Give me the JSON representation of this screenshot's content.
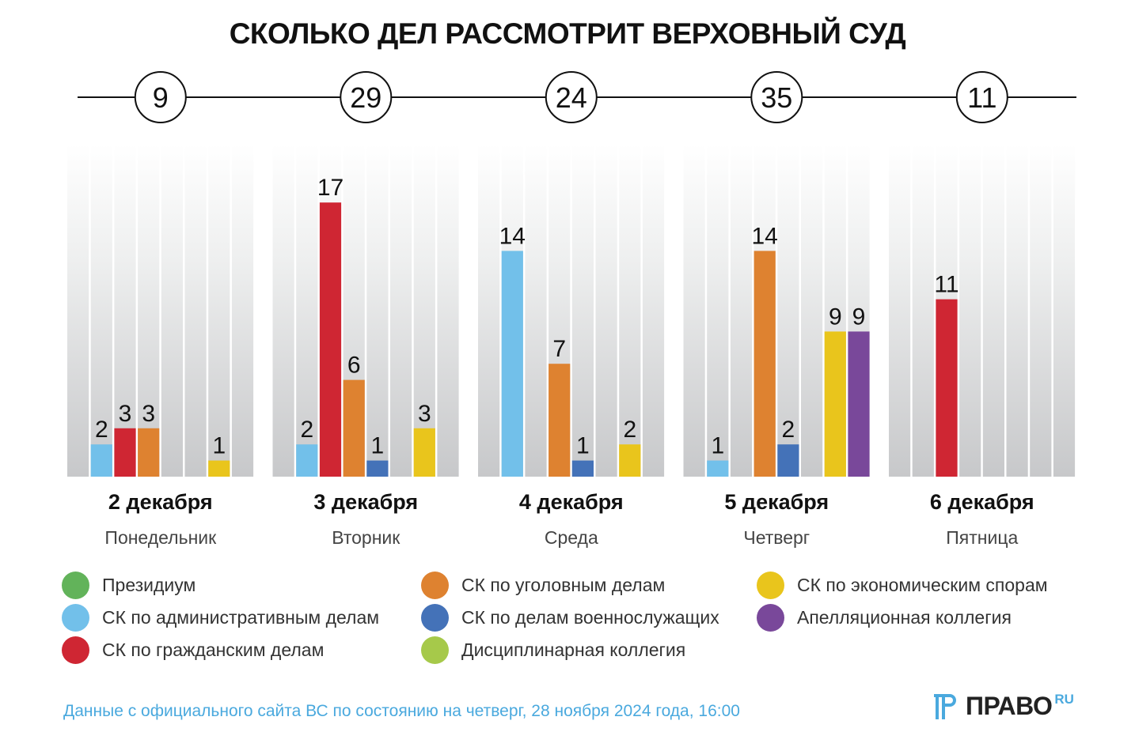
{
  "title": "СКОЛЬКО ДЕЛ РАССМОТРИТ ВЕРХОВНЫЙ СУД",
  "chart_data": {
    "type": "bar",
    "title": "СКОЛЬКО ДЕЛ РАССМОТРИТ ВЕРХОВНЫЙ СУД",
    "xlabel": "",
    "ylabel": "",
    "ylim": [
      0,
      17
    ],
    "grid": false,
    "legend_position": "bottom",
    "categories": [
      {
        "date": "2 декабря",
        "weekday": "Понедельник",
        "total": 9
      },
      {
        "date": "3 декабря",
        "weekday": "Вторник",
        "total": 29
      },
      {
        "date": "4 декабря",
        "weekday": "Среда",
        "total": 24
      },
      {
        "date": "5 декабря",
        "weekday": "Четверг",
        "total": 35
      },
      {
        "date": "6 декабря",
        "weekday": "Пятница",
        "total": 11
      }
    ],
    "series": [
      {
        "name": "Президиум",
        "color": "#62b35a",
        "values": [
          0,
          0,
          0,
          0,
          0
        ]
      },
      {
        "name": "СК по административным делам",
        "color": "#72c0ea",
        "values": [
          2,
          2,
          14,
          1,
          0
        ]
      },
      {
        "name": "СК по гражданским делам",
        "color": "#cf2633",
        "values": [
          3,
          17,
          0,
          0,
          11
        ]
      },
      {
        "name": "СК по уголовным делам",
        "color": "#de8230",
        "values": [
          3,
          6,
          7,
          14,
          0
        ]
      },
      {
        "name": "СК по делам военнослужащих",
        "color": "#4472b8",
        "values": [
          0,
          1,
          1,
          2,
          0
        ]
      },
      {
        "name": "Дисциплинарная коллегия",
        "color": "#a6c94a",
        "values": [
          0,
          0,
          0,
          0,
          0
        ]
      },
      {
        "name": "СК по экономическим спорам",
        "color": "#e9c51c",
        "values": [
          1,
          3,
          2,
          9,
          0
        ]
      },
      {
        "name": "Апелляционная коллегия",
        "color": "#79489a",
        "values": [
          0,
          0,
          0,
          9,
          0
        ]
      }
    ]
  },
  "legend": {
    "columns": [
      [
        0,
        1,
        2
      ],
      [
        3,
        4,
        5
      ],
      [
        6,
        7
      ]
    ]
  },
  "footnote": "Данные с официального сайта ВС по состоянию на четверг, 28 ноября 2024 года, 16:00",
  "logo": {
    "text": "ПРАВО",
    "suffix": "RU",
    "accent": "#4aa9de"
  }
}
